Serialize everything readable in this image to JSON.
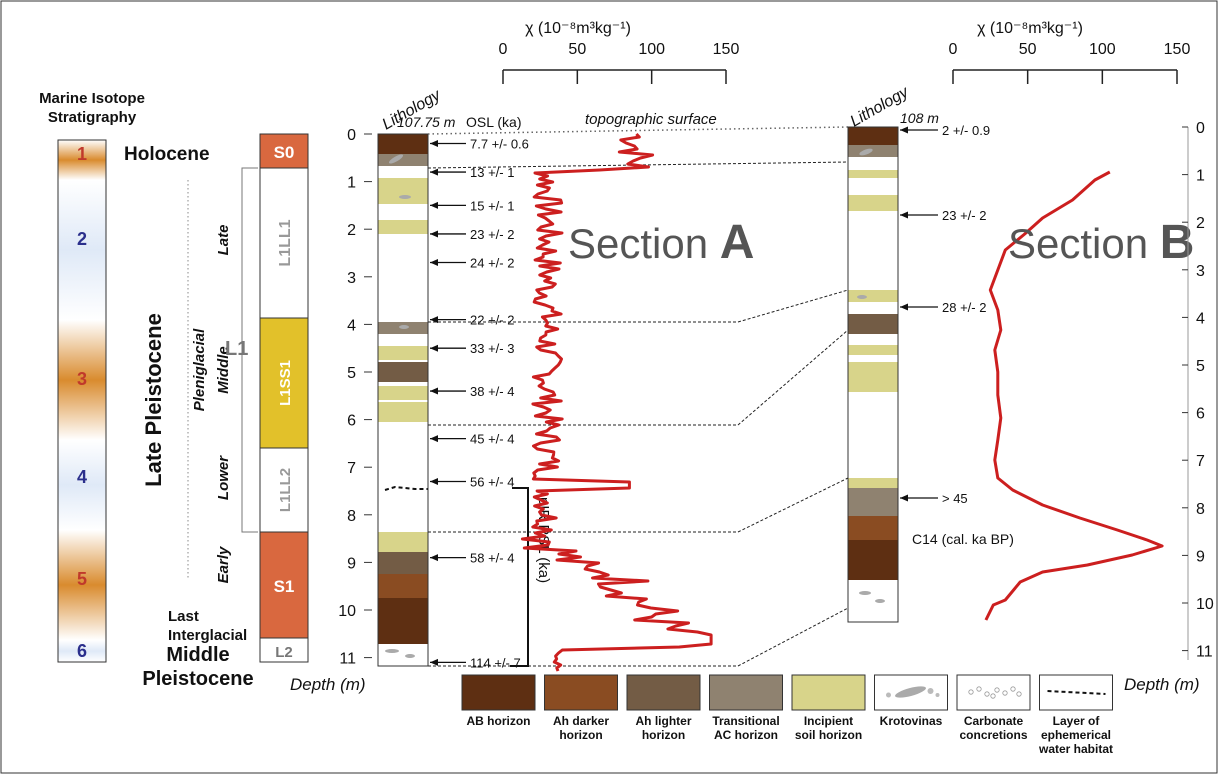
{
  "mis": {
    "title_line1": "Marine Isotope",
    "title_line2": "Stratigraphy",
    "stages": [
      "1",
      "2",
      "3",
      "4",
      "5",
      "6"
    ],
    "stage_colors": {
      "odd": "#d98b2e",
      "even_text": "#2b2f8c",
      "odd_text": "#c0392b"
    }
  },
  "chrono": {
    "holocene": "Holocene",
    "late_pleistocene": "Late Pleistocene",
    "middle_pleistocene_1": "Middle",
    "middle_pleistocene_2": "Pleistocene",
    "pleniglacial": "Pleniglacial",
    "late": "Late",
    "middle": "Middle",
    "lower": "Lower",
    "early": "Early",
    "last_interglacial_1": "Last",
    "last_interglacial_2": "Interglacial",
    "l1": "L1"
  },
  "units": {
    "s0": "S0",
    "l1ll1": "L1LL1",
    "l1ss1": "L1SS1",
    "l1ll2": "L1LL2",
    "s1": "S1",
    "l2": "L2"
  },
  "depth_axis": {
    "label": "Depth (m)",
    "label_right": "Depth (m)",
    "ticks": [
      "0",
      "1",
      "2",
      "3",
      "4",
      "5",
      "6",
      "7",
      "8",
      "9",
      "10",
      "11"
    ]
  },
  "section_a": {
    "lithology": "Lithology",
    "elevation": "107.75 m",
    "osl_header": "OSL (ka)",
    "topo": "topographic surface",
    "title_word": "Section",
    "title_letter": "A",
    "chi_label": "χ (10⁻⁸m³kg⁻¹)",
    "chi_ticks": [
      "0",
      "50",
      "100",
      "150"
    ],
    "pir_label": "pIR RSL (ka)",
    "ages": [
      "7.7 +/- 0.6",
      "13 +/- 1",
      "15 +/- 1",
      "23 +/- 2",
      "24 +/- 2",
      "22 +/- 2",
      "33 +/- 3",
      "38 +/- 4",
      "45 +/- 4",
      "56 +/- 4",
      "58 +/- 4",
      "114 +/- 7"
    ]
  },
  "section_b": {
    "lithology": "Lithology",
    "elevation": "108 m",
    "title_word": "Section",
    "title_letter": "B",
    "chi_label": "χ (10⁻⁸m³kg⁻¹)",
    "chi_ticks": [
      "0",
      "50",
      "100",
      "150"
    ],
    "ages": [
      "2 +/- 0.9",
      "23 +/- 2",
      "28 +/- 2",
      "> 45"
    ],
    "c14": "C14 (cal. ka BP)"
  },
  "legend": [
    {
      "line1": "AB horizon",
      "line2": "",
      "line3": "",
      "color": "#5e2f12"
    },
    {
      "line1": "Ah darker",
      "line2": "horizon",
      "line3": "",
      "color": "#8a4c22"
    },
    {
      "line1": "Ah lighter",
      "line2": "horizon",
      "line3": "",
      "color": "#735c45"
    },
    {
      "line1": "Transitional",
      "line2": "AC horizon",
      "line3": "",
      "color": "#8f8270"
    },
    {
      "line1": "Incipient",
      "line2": "soil horizon",
      "line3": "",
      "color": "#d8d48a"
    },
    {
      "line1": "Krotovinas",
      "line2": "",
      "line3": "",
      "color": "#ffffff"
    },
    {
      "line1": "Carbonate",
      "line2": "concretions",
      "line3": "",
      "color": "#ffffff"
    },
    {
      "line1": "Layer of",
      "line2": "ephemerical",
      "line3": "water habitat",
      "color": "#ffffff"
    }
  ],
  "colors": {
    "curve": "#cc1f1f",
    "s0": "#d9683f",
    "l1ss1": "#e2c12a",
    "s1": "#d9683f"
  }
}
